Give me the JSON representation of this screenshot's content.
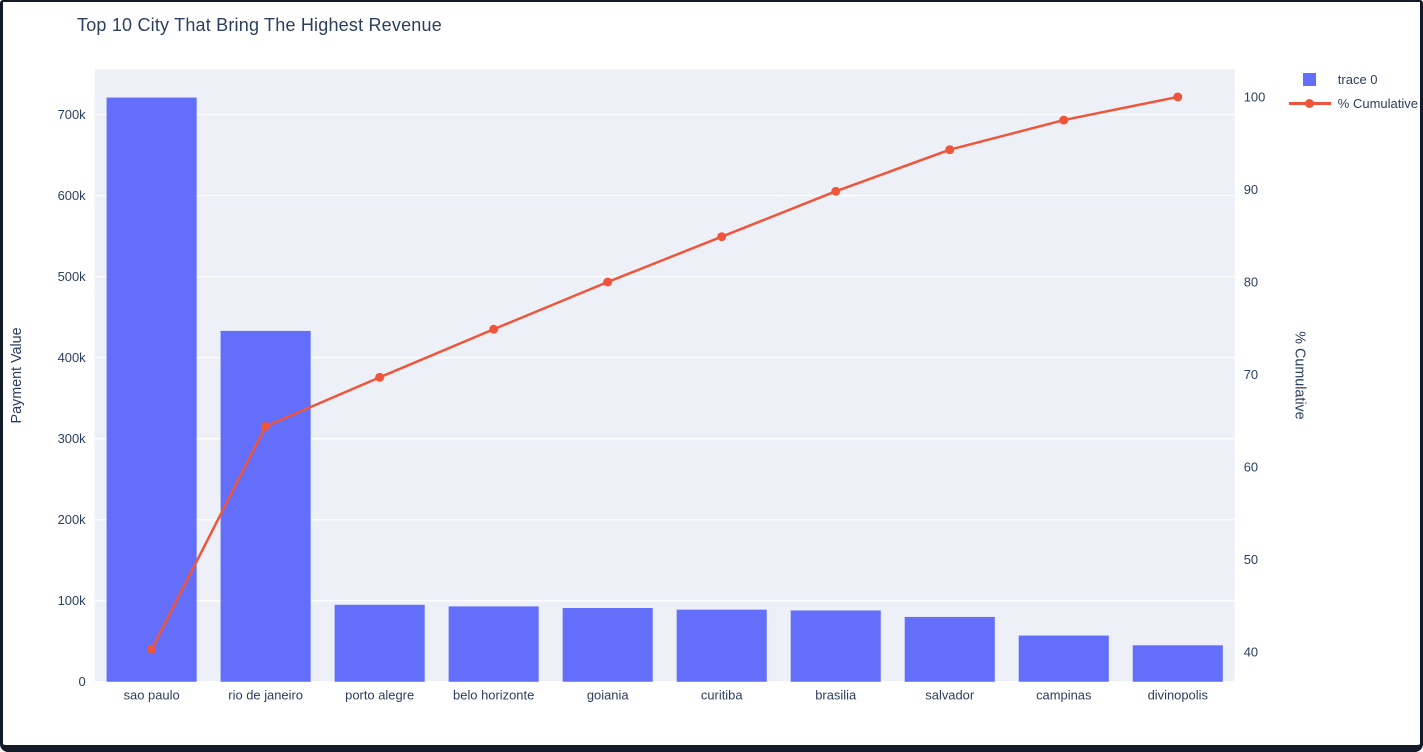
{
  "colors": {
    "bar": "#636EFA",
    "line": "#EF553B",
    "text": "#2A3F5F",
    "plot_bg": "#EDF0F6",
    "grid": "#FFFFFF",
    "frame": "#131A28",
    "page_bg": "#FFFFFF"
  },
  "chart_data": {
    "type": "bar",
    "subtype": "pareto (bar + cumulative line, dual y-axis)",
    "title": "Top 10 City That Bring The Highest Revenue",
    "categories": [
      "sao paulo",
      "rio de janeiro",
      "porto alegre",
      "belo horizonte",
      "goiania",
      "curitiba",
      "brasilia",
      "salvador",
      "campinas",
      "divinopolis"
    ],
    "series": [
      {
        "name": "trace 0",
        "type": "bar",
        "axis": "left",
        "color": "#636EFA",
        "values": [
          721000,
          433000,
          95000,
          93000,
          91000,
          89000,
          88000,
          80000,
          57000,
          45000
        ]
      },
      {
        "name": "% Cumulative",
        "type": "line",
        "axis": "right",
        "color": "#EF553B",
        "values": [
          40.3,
          64.4,
          69.7,
          74.9,
          80.0,
          84.9,
          89.8,
          94.3,
          97.5,
          100.0
        ]
      }
    ],
    "yaxis_left": {
      "title": "Payment Value",
      "range": [
        0,
        756000
      ],
      "tick_values": [
        0,
        100000,
        200000,
        300000,
        400000,
        500000,
        600000,
        700000
      ],
      "tick_labels": [
        "0",
        "100k",
        "200k",
        "300k",
        "400k",
        "500k",
        "600k",
        "700k"
      ]
    },
    "yaxis_right": {
      "title": "% Cumulative",
      "range": [
        36.8,
        103.0
      ],
      "tick_values": [
        40,
        50,
        60,
        70,
        80,
        90,
        100
      ],
      "tick_labels": [
        "40",
        "50",
        "60",
        "70",
        "80",
        "90",
        "100"
      ]
    },
    "legend": {
      "position": "top-right",
      "items": [
        {
          "label": "trace 0",
          "marker": "square",
          "color": "#636EFA"
        },
        {
          "label": "% Cumulative",
          "marker": "line-dot",
          "color": "#EF553B"
        }
      ]
    },
    "grid": true,
    "plot_background": "#EDF0F6",
    "gridline_color": "#FFFFFF"
  }
}
